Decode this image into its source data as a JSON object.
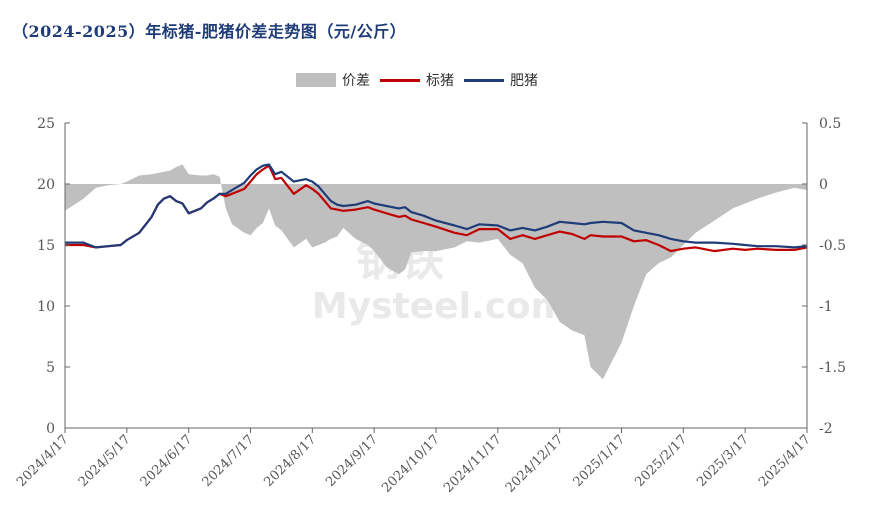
{
  "title": "（2024-2025）年标猪-肥猪价差走势图（元/公斤）",
  "watermark": {
    "cn": "钢铁",
    "en": "Mysteel.com"
  },
  "colors": {
    "spread": "#bfbfbf",
    "standard": "#c00000",
    "fat": "#1f3c78",
    "axis": "#666666"
  },
  "legend": [
    {
      "key": "spread",
      "label": "价差",
      "style": "area"
    },
    {
      "key": "standard",
      "label": "标猪",
      "style": "line"
    },
    {
      "key": "fat",
      "label": "肥猪",
      "style": "line"
    }
  ],
  "chart_data": {
    "type": "line",
    "title": "（2024-2025）年标猪-肥猪价差走势图（元/公斤）",
    "xlabel": "",
    "ylabel": "",
    "ylim": [
      0,
      25
    ],
    "y2lim": [
      -2,
      0.5
    ],
    "y_ticks": [
      0,
      5,
      10,
      15,
      20,
      25
    ],
    "y2_ticks": [
      -2,
      -1.5,
      -1,
      -0.5,
      0,
      0.5
    ],
    "y2_tick_labels": [
      "-2",
      "-1.5",
      "-1",
      "-0.5",
      "0",
      "0.5"
    ],
    "x_tick_labels": [
      "2024/4/17",
      "2024/5/17",
      "2024/6/17",
      "2024/7/17",
      "2024/8/17",
      "2024/9/17",
      "2024/10/17",
      "2024/11/17",
      "2024/12/17",
      "2025/1/17",
      "2025/2/17",
      "2025/3/17",
      "2025/4/17"
    ],
    "x_domain": [
      0,
      12
    ],
    "series": [
      {
        "name": "标猪",
        "axis": "left",
        "x": [
          0,
          0.3,
          0.5,
          0.7,
          0.9,
          1.0,
          1.2,
          1.4,
          1.5,
          1.6,
          1.7,
          1.8,
          1.9,
          2.0,
          2.2,
          2.3,
          2.4,
          2.5,
          2.6,
          2.7,
          2.9,
          3.0,
          3.1,
          3.2,
          3.3,
          3.4,
          3.5,
          3.7,
          3.9,
          4.0,
          4.1,
          4.2,
          4.3,
          4.4,
          4.5,
          4.7,
          4.9,
          5.0,
          5.2,
          5.4,
          5.5,
          5.6,
          5.8,
          6.0,
          6.3,
          6.5,
          6.7,
          7.0,
          7.2,
          7.4,
          7.6,
          7.8,
          8.0,
          8.2,
          8.4,
          8.5,
          8.7,
          9.0,
          9.2,
          9.4,
          9.6,
          9.8,
          10.0,
          10.2,
          10.5,
          10.8,
          11.0,
          11.2,
          11.5,
          11.8,
          12.0
        ],
        "values": [
          15.0,
          15.0,
          14.8,
          14.9,
          15.0,
          15.4,
          16.0,
          17.3,
          18.3,
          18.8,
          19.0,
          18.6,
          18.4,
          17.6,
          18.0,
          18.5,
          18.8,
          19.2,
          19.0,
          19.2,
          19.6,
          20.2,
          20.8,
          21.2,
          21.5,
          20.4,
          20.5,
          19.2,
          19.9,
          19.6,
          19.2,
          18.6,
          18.0,
          17.9,
          17.8,
          17.9,
          18.1,
          17.9,
          17.6,
          17.3,
          17.4,
          17.1,
          16.8,
          16.5,
          16.0,
          15.8,
          16.3,
          16.3,
          15.5,
          15.8,
          15.5,
          15.8,
          16.1,
          15.9,
          15.5,
          15.8,
          15.7,
          15.7,
          15.3,
          15.4,
          15.0,
          14.5,
          14.7,
          14.8,
          14.5,
          14.7,
          14.6,
          14.7,
          14.6,
          14.6,
          14.8
        ]
      },
      {
        "name": "肥猪",
        "axis": "left",
        "x": [
          0,
          0.3,
          0.5,
          0.7,
          0.9,
          1.0,
          1.2,
          1.4,
          1.5,
          1.6,
          1.7,
          1.8,
          1.9,
          2.0,
          2.2,
          2.3,
          2.4,
          2.5,
          2.6,
          2.7,
          2.9,
          3.0,
          3.1,
          3.2,
          3.3,
          3.4,
          3.5,
          3.7,
          3.9,
          4.0,
          4.1,
          4.2,
          4.3,
          4.4,
          4.5,
          4.7,
          4.9,
          5.0,
          5.2,
          5.4,
          5.5,
          5.6,
          5.8,
          6.0,
          6.3,
          6.5,
          6.7,
          7.0,
          7.2,
          7.4,
          7.6,
          7.8,
          8.0,
          8.2,
          8.4,
          8.5,
          8.7,
          9.0,
          9.2,
          9.4,
          9.6,
          9.8,
          10.0,
          10.2,
          10.5,
          10.8,
          11.0,
          11.2,
          11.5,
          11.8,
          12.0
        ],
        "values": [
          15.2,
          15.2,
          14.8,
          14.9,
          15.0,
          15.4,
          16.0,
          17.3,
          18.3,
          18.8,
          19.0,
          18.6,
          18.4,
          17.6,
          18.0,
          18.5,
          18.8,
          19.2,
          19.2,
          19.5,
          20.1,
          20.7,
          21.2,
          21.5,
          21.6,
          20.8,
          21.0,
          20.2,
          20.4,
          20.2,
          19.8,
          19.2,
          18.6,
          18.3,
          18.2,
          18.3,
          18.6,
          18.4,
          18.2,
          18.0,
          18.1,
          17.7,
          17.4,
          17.0,
          16.6,
          16.3,
          16.7,
          16.6,
          16.2,
          16.4,
          16.2,
          16.5,
          16.9,
          16.8,
          16.7,
          16.8,
          16.9,
          16.8,
          16.2,
          16.0,
          15.8,
          15.5,
          15.3,
          15.2,
          15.2,
          15.1,
          15.0,
          14.9,
          14.9,
          14.8,
          14.9
        ]
      },
      {
        "name": "价差",
        "axis": "right",
        "x": [
          0,
          0.3,
          0.5,
          0.7,
          0.9,
          1.0,
          1.2,
          1.4,
          1.5,
          1.6,
          1.7,
          1.8,
          1.9,
          2.0,
          2.2,
          2.3,
          2.4,
          2.5,
          2.6,
          2.7,
          2.9,
          3.0,
          3.1,
          3.2,
          3.3,
          3.4,
          3.5,
          3.7,
          3.9,
          4.0,
          4.1,
          4.2,
          4.3,
          4.4,
          4.5,
          4.7,
          4.9,
          5.0,
          5.2,
          5.4,
          5.5,
          5.6,
          5.8,
          6.0,
          6.3,
          6.5,
          6.7,
          7.0,
          7.2,
          7.4,
          7.6,
          7.8,
          8.0,
          8.2,
          8.4,
          8.5,
          8.7,
          9.0,
          9.2,
          9.4,
          9.6,
          9.8,
          10.0,
          10.2,
          10.5,
          10.8,
          11.0,
          11.2,
          11.5,
          11.8,
          12.0
        ],
        "values": [
          -0.22,
          -0.12,
          -0.03,
          -0.01,
          0.0,
          0.02,
          0.07,
          0.08,
          0.09,
          0.1,
          0.11,
          0.14,
          0.16,
          0.08,
          0.07,
          0.07,
          0.08,
          0.06,
          -0.2,
          -0.33,
          -0.4,
          -0.42,
          -0.36,
          -0.32,
          -0.2,
          -0.34,
          -0.38,
          -0.52,
          -0.45,
          -0.52,
          -0.5,
          -0.48,
          -0.45,
          -0.43,
          -0.36,
          -0.45,
          -0.5,
          -0.55,
          -0.68,
          -0.74,
          -0.7,
          -0.56,
          -0.55,
          -0.55,
          -0.52,
          -0.47,
          -0.48,
          -0.45,
          -0.58,
          -0.65,
          -0.85,
          -0.95,
          -1.13,
          -1.2,
          -1.24,
          -1.5,
          -1.6,
          -1.3,
          -1.0,
          -0.74,
          -0.65,
          -0.6,
          -0.5,
          -0.4,
          -0.3,
          -0.2,
          -0.16,
          -0.12,
          -0.07,
          -0.03,
          -0.05
        ]
      }
    ]
  }
}
